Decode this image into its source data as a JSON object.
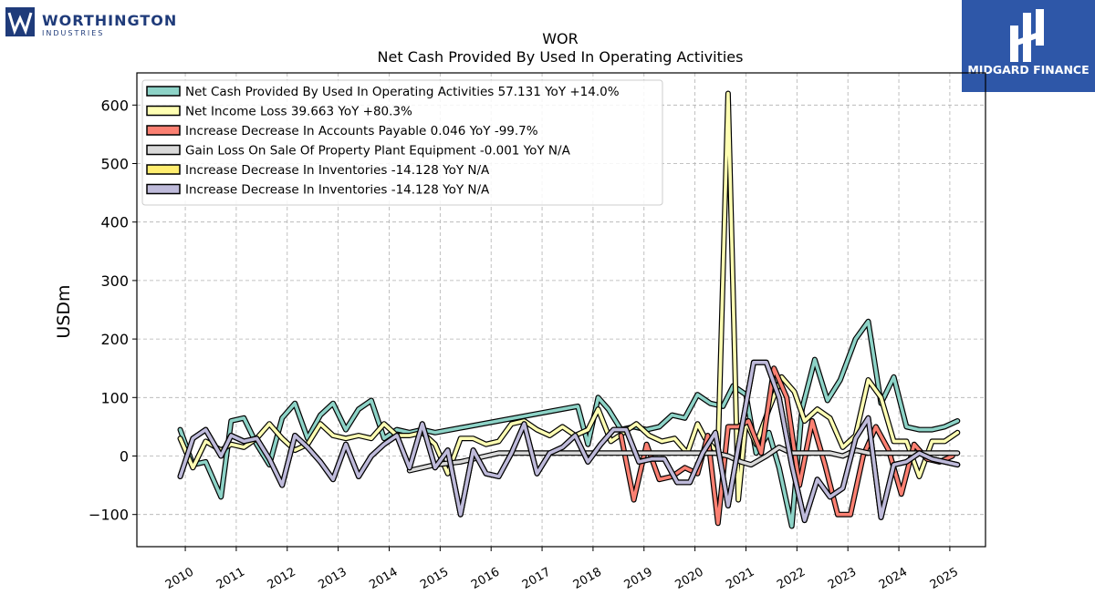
{
  "company_logo": {
    "name": "WORTHINGTON",
    "sub": "INDUSTRIES",
    "color": "#1f3b7a"
  },
  "brand_badge": {
    "text": "MIDGARD FINANCE",
    "bg": "#2e57a8"
  },
  "chart_data": {
    "type": "line",
    "title": "WOR",
    "subtitle": "Net Cash Provided By Used In Operating Activities",
    "ylabel": "USDm",
    "xlabel": "",
    "ylim": [
      -155,
      655
    ],
    "xlim": [
      2009.05,
      2025.7
    ],
    "yticks": [
      -100,
      0,
      100,
      200,
      300,
      400,
      500,
      600
    ],
    "yticklabels": [
      "−100",
      "0",
      "100",
      "200",
      "300",
      "400",
      "500",
      "600"
    ],
    "xticks": [
      2010,
      2011,
      2012,
      2013,
      2014,
      2015,
      2016,
      2017,
      2018,
      2019,
      2020,
      2021,
      2022,
      2023,
      2024,
      2025
    ],
    "grid": true,
    "legend_position": "top-left",
    "series": [
      {
        "name": "Net Cash Provided By Used In Operating Activities",
        "legend": "Net Cash Provided By Used In Operating Activities  57.131 YoY +14.0%",
        "color": "#8dd3c7",
        "x": [
          2009.9,
          2010.15,
          2010.4,
          2010.7,
          2010.9,
          2011.15,
          2011.4,
          2011.65,
          2011.9,
          2012.15,
          2012.4,
          2012.65,
          2012.9,
          2013.15,
          2013.4,
          2013.65,
          2013.9,
          2014.15,
          2014.4,
          2014.65,
          2014.9,
          2017.7,
          2017.9,
          2018.1,
          2018.3,
          2018.55,
          2018.8,
          2019.05,
          2019.3,
          2019.55,
          2019.8,
          2020.05,
          2020.3,
          2020.55,
          2020.75,
          2021.0,
          2021.2,
          2021.45,
          2021.65,
          2021.9,
          2022.1,
          2022.35,
          2022.6,
          2022.85,
          2023.15,
          2023.4,
          2023.65,
          2023.9,
          2024.15,
          2024.4,
          2024.65,
          2024.9,
          2025.15
        ],
        "y": [
          45,
          -15,
          -10,
          -70,
          60,
          65,
          20,
          -15,
          65,
          90,
          30,
          70,
          90,
          45,
          80,
          95,
          30,
          45,
          40,
          45,
          40,
          85,
          20,
          100,
          80,
          45,
          50,
          45,
          50,
          70,
          65,
          105,
          90,
          85,
          120,
          105,
          5,
          40,
          -20,
          -120,
          80,
          165,
          95,
          130,
          200,
          230,
          90,
          135,
          50,
          45,
          45,
          50,
          60
        ]
      },
      {
        "name": "Net Income Loss",
        "legend": "Net Income Loss  39.663 YoY +80.3%",
        "color": "#ffffb3",
        "x": [
          2009.9,
          2010.15,
          2010.4,
          2010.7,
          2010.9,
          2011.15,
          2011.4,
          2011.65,
          2011.9,
          2012.15,
          2012.4,
          2012.65,
          2012.9,
          2013.15,
          2013.4,
          2013.65,
          2013.9,
          2014.15,
          2014.4,
          2014.65,
          2014.9,
          2015.15,
          2015.4,
          2015.65,
          2015.9,
          2016.15,
          2016.4,
          2016.65,
          2016.9,
          2017.15,
          2017.4,
          2017.65,
          2017.9,
          2018.1,
          2018.35,
          2018.6,
          2018.85,
          2019.1,
          2019.35,
          2019.6,
          2019.85,
          2020.05,
          2020.2,
          2020.45,
          2020.65,
          2020.85,
          2021.0,
          2021.2,
          2021.45,
          2021.7,
          2021.95,
          2022.15,
          2022.4,
          2022.65,
          2022.9,
          2023.15,
          2023.4,
          2023.65,
          2023.9,
          2024.15,
          2024.4,
          2024.65,
          2024.9,
          2025.15
        ],
        "y": [
          30,
          -20,
          25,
          10,
          20,
          15,
          30,
          55,
          30,
          10,
          20,
          55,
          35,
          30,
          35,
          30,
          55,
          35,
          35,
          40,
          20,
          -30,
          30,
          30,
          20,
          25,
          55,
          60,
          45,
          35,
          50,
          35,
          45,
          80,
          25,
          40,
          55,
          35,
          25,
          30,
          5,
          55,
          30,
          5,
          620,
          -75,
          60,
          20,
          80,
          135,
          110,
          60,
          80,
          65,
          15,
          35,
          130,
          100,
          25,
          25,
          -35,
          25,
          25,
          40
        ]
      },
      {
        "name": "Increase Decrease In Accounts Payable",
        "legend": "Increase Decrease In Accounts Payable  0.046 YoY -99.7%",
        "color": "#fb8072",
        "x": [
          2018.55,
          2018.8,
          2019.05,
          2019.3,
          2019.55,
          2019.8,
          2020.05,
          2020.25,
          2020.45,
          2020.65,
          2020.85,
          2021.05,
          2021.3,
          2021.55,
          2021.8,
          2022.05,
          2022.3,
          2022.55,
          2022.8,
          2023.05,
          2023.3,
          2023.55,
          2023.8,
          2024.05,
          2024.3,
          2024.55,
          2024.8,
          2025.05
        ],
        "y": [
          35,
          -75,
          20,
          -40,
          -35,
          -20,
          -30,
          35,
          -115,
          50,
          50,
          60,
          5,
          150,
          100,
          -50,
          60,
          -15,
          -100,
          -100,
          0,
          50,
          10,
          -65,
          20,
          -5,
          -10,
          0
        ]
      },
      {
        "name": "Gain Loss On Sale Of Property Plant Equipment",
        "legend": "Gain Loss On Sale Of Property Plant Equipment  -0.001 YoY N/A",
        "color": "#d9d9d9",
        "x": [
          2014.4,
          2014.9,
          2015.4,
          2015.9,
          2016.15,
          2016.65,
          2017.15,
          2017.65,
          2018.15,
          2018.65,
          2019.15,
          2019.65,
          2020.15,
          2020.4,
          2020.65,
          2020.9,
          2021.1,
          2021.4,
          2021.65,
          2021.9,
          2022.15,
          2022.4,
          2022.65,
          2022.9,
          2023.15,
          2023.4,
          2023.65,
          2023.9,
          2024.15,
          2024.65,
          2025.15
        ],
        "y": [
          -25,
          -15,
          -10,
          0,
          5,
          5,
          5,
          5,
          5,
          5,
          5,
          5,
          5,
          5,
          0,
          -10,
          -15,
          0,
          15,
          5,
          5,
          5,
          5,
          0,
          10,
          5,
          5,
          5,
          5,
          5,
          5
        ]
      },
      {
        "name": "Increase Decrease In Inventories",
        "legend": "Increase Decrease In Inventories  -14.128 YoY N/A",
        "color": "#ffed6f",
        "x": [
          2009.9,
          2010.15,
          2010.4,
          2010.7,
          2010.9,
          2011.15,
          2011.4,
          2011.65,
          2011.9,
          2012.15,
          2012.4,
          2012.65,
          2012.9,
          2013.15,
          2013.4,
          2013.65,
          2013.9,
          2014.15,
          2014.4,
          2014.65,
          2014.9,
          2015.15,
          2015.4,
          2015.65,
          2015.9,
          2016.15,
          2016.4,
          2016.65,
          2016.9,
          2017.15,
          2017.4,
          2017.65,
          2017.9,
          2018.15,
          2018.4,
          2018.65,
          2018.9,
          2019.15,
          2019.4,
          2019.65,
          2019.9,
          2020.15,
          2020.4,
          2020.65,
          2020.9,
          2021.15,
          2021.4,
          2021.65,
          2021.9,
          2022.15,
          2022.4,
          2022.65,
          2022.9,
          2023.15,
          2023.4,
          2023.65,
          2023.9,
          2024.15,
          2024.4,
          2024.65,
          2024.9,
          2025.15
        ],
        "y": [
          -35,
          30,
          45,
          0,
          35,
          25,
          30,
          -5,
          -50,
          35,
          15,
          -10,
          -40,
          20,
          -35,
          0,
          20,
          35,
          -20,
          55,
          -20,
          10,
          -100,
          10,
          -30,
          -35,
          5,
          55,
          -30,
          5,
          15,
          35,
          -10,
          20,
          45,
          45,
          -10,
          -5,
          -5,
          -45,
          -45,
          5,
          40,
          -85,
          40,
          160,
          160,
          100,
          -15,
          -110,
          -40,
          -70,
          -55,
          30,
          65,
          -105,
          -15,
          -10,
          5,
          -5,
          -10,
          -15
        ]
      },
      {
        "name": "Increase Decrease In Inventories",
        "legend": "Increase Decrease In Inventories  -14.128 YoY N/A",
        "color": "#bebada",
        "x": [
          2009.9,
          2010.15,
          2010.4,
          2010.7,
          2010.9,
          2011.15,
          2011.4,
          2011.65,
          2011.9,
          2012.15,
          2012.4,
          2012.65,
          2012.9,
          2013.15,
          2013.4,
          2013.65,
          2013.9,
          2014.15,
          2014.4,
          2014.65,
          2014.9,
          2015.15,
          2015.4,
          2015.65,
          2015.9,
          2016.15,
          2016.4,
          2016.65,
          2016.9,
          2017.15,
          2017.4,
          2017.65,
          2017.9,
          2018.15,
          2018.4,
          2018.65,
          2018.9,
          2019.15,
          2019.4,
          2019.65,
          2019.9,
          2020.15,
          2020.4,
          2020.65,
          2020.9,
          2021.15,
          2021.4,
          2021.65,
          2021.9,
          2022.15,
          2022.4,
          2022.65,
          2022.9,
          2023.15,
          2023.4,
          2023.65,
          2023.9,
          2024.15,
          2024.4,
          2024.65,
          2024.9,
          2025.15
        ],
        "y": [
          -35,
          30,
          45,
          0,
          35,
          25,
          30,
          -5,
          -50,
          35,
          15,
          -10,
          -40,
          20,
          -35,
          0,
          20,
          35,
          -20,
          55,
          -20,
          10,
          -100,
          10,
          -30,
          -35,
          5,
          55,
          -30,
          5,
          15,
          35,
          -10,
          20,
          45,
          45,
          -10,
          -5,
          -5,
          -45,
          -45,
          5,
          40,
          -85,
          40,
          160,
          160,
          100,
          -15,
          -110,
          -40,
          -70,
          -55,
          30,
          65,
          -105,
          -15,
          -10,
          5,
          -5,
          -10,
          -15
        ]
      }
    ]
  }
}
